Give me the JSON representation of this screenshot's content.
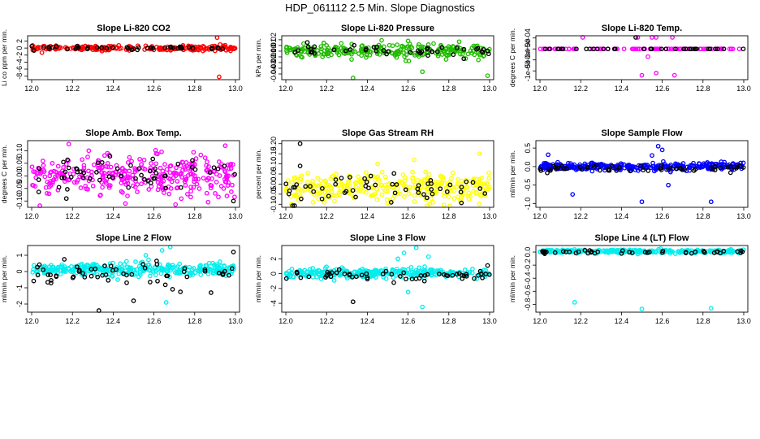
{
  "figure_title": "HDP_061112  2.5 Min. Slope Diagnostics",
  "colors": {
    "red": "#ff0000",
    "green": "#22bb00",
    "magenta": "#ff00ff",
    "blue": "#0000ff",
    "yellow": "#ffff00",
    "cyan": "#00eeee",
    "black": "#000000"
  },
  "chart_data": [
    {
      "type": "scatter",
      "title": "Slope Li-820 CO2",
      "ylabel": "Li co ppm per min.",
      "xlim": [
        11.98,
        13.02
      ],
      "ylim": [
        -9,
        3.5
      ],
      "xticks": [
        "12.0",
        "12.2",
        "12.4",
        "12.6",
        "12.8",
        "13.0"
      ],
      "yticks": [
        "-8",
        "-6",
        "-4",
        "-2",
        "0",
        "2"
      ],
      "ytick_values": [
        -8,
        -6,
        -4,
        -2,
        0,
        2
      ],
      "series": [
        {
          "name": "main",
          "color": "red",
          "center": 0,
          "spread": 0.35,
          "count": 220,
          "outliers": [
            [
              12.91,
              3
            ],
            [
              12.92,
              -8.2
            ],
            [
              12.95,
              0.8
            ],
            [
              12.05,
              -1.3
            ]
          ]
        },
        {
          "name": "black",
          "color": "black",
          "center": 0,
          "spread": 0.2,
          "count": 45,
          "outliers": []
        }
      ]
    },
    {
      "type": "scatter",
      "title": "Slope Li-820 Pressure",
      "ylabel": "kPa per min.",
      "xlim": [
        11.98,
        13.02
      ],
      "ylim": [
        -0.05,
        0.027
      ],
      "xticks": [
        "12.0",
        "12.2",
        "12.4",
        "12.6",
        "12.8",
        "13.0"
      ],
      "yticks": [
        "-0.04",
        "-0.03",
        "-0.02",
        "-0.01",
        "0.00",
        "0.01",
        "0.02"
      ],
      "ytick_values": [
        -0.04,
        -0.03,
        -0.02,
        -0.01,
        0,
        0.01,
        0.02
      ],
      "series": [
        {
          "name": "main",
          "color": "green",
          "center": 0,
          "spread": 0.006,
          "count": 260,
          "outliers": [
            [
              12.33,
              -0.047
            ],
            [
              12.99,
              -0.043
            ],
            [
              12.67,
              -0.036
            ],
            [
              12.47,
              0.019
            ],
            [
              12.6,
              0.018
            ],
            [
              12.2,
              0.01
            ]
          ]
        },
        {
          "name": "black",
          "color": "black",
          "center": 0,
          "spread": 0.005,
          "count": 45,
          "outliers": []
        }
      ]
    },
    {
      "type": "scatter",
      "title": "Slope Li-820 Temp.",
      "ylabel": "degrees C per min.",
      "xlim": [
        11.98,
        13.02
      ],
      "ylim": [
        -0.0014,
        0.0006
      ],
      "xticks": [
        "12.0",
        "12.2",
        "12.4",
        "12.6",
        "12.8",
        "13.0"
      ],
      "yticks": [
        "-1e-03",
        "-5e-04",
        "0e+00",
        "5e-04"
      ],
      "ytick_values": [
        -0.001,
        -0.0005,
        0,
        0.0005
      ],
      "series": [
        {
          "name": "main",
          "color": "magenta",
          "center": 0,
          "spread": 0,
          "count": 90,
          "outliers": [
            [
              12.21,
              0.00058
            ],
            [
              12.48,
              0.00058
            ],
            [
              12.55,
              0.00058
            ],
            [
              12.57,
              0.00058
            ],
            [
              12.65,
              0.00058
            ],
            [
              12.5,
              -0.0012
            ],
            [
              12.53,
              -0.00035
            ],
            [
              12.57,
              -0.0011
            ],
            [
              12.66,
              -0.0012
            ]
          ]
        },
        {
          "name": "black",
          "color": "black",
          "center": 0,
          "spread": 0,
          "count": 35,
          "outliers": [
            [
              12.47,
              0.00058
            ]
          ]
        }
      ]
    },
    {
      "type": "scatter",
      "title": "Slope Amb. Box Temp.",
      "ylabel": "degrees C per min.",
      "xlim": [
        11.98,
        13.02
      ],
      "ylim": [
        -0.125,
        0.14
      ],
      "xticks": [
        "12.0",
        "12.2",
        "12.4",
        "12.6",
        "12.8",
        "13.0"
      ],
      "yticks": [
        "-0.10",
        "-0.05",
        "0.00",
        "0.05",
        "0.10"
      ],
      "ytick_values": [
        -0.1,
        -0.05,
        0,
        0.05,
        0.1
      ],
      "series": [
        {
          "name": "main",
          "color": "magenta",
          "center": 0,
          "spread": 0.04,
          "count": 330,
          "outliers": [
            [
              12.95,
              0.12
            ],
            [
              12.28,
              0.1
            ],
            [
              12.04,
              -0.12
            ],
            [
              12.46,
              -0.11
            ]
          ]
        },
        {
          "name": "black",
          "color": "black",
          "center": 0,
          "spread": 0.035,
          "count": 55,
          "outliers": [
            [
              12.99,
              -0.1
            ],
            [
              12.17,
              -0.09
            ]
          ]
        }
      ]
    },
    {
      "type": "scatter",
      "title": "Slope Gas Stream RH",
      "ylabel": "percent per min.",
      "xlim": [
        11.98,
        13.02
      ],
      "ylim": [
        -0.115,
        0.215
      ],
      "xticks": [
        "12.0",
        "12.2",
        "12.4",
        "12.6",
        "12.8",
        "13.0"
      ],
      "yticks": [
        "-0.10",
        "-0.05",
        "0.00",
        "0.05",
        "0.10",
        "0.15",
        "0.20"
      ],
      "ytick_values": [
        -0.1,
        -0.05,
        0,
        0.05,
        0.1,
        0.15,
        0.2
      ],
      "series": [
        {
          "name": "main",
          "color": "yellow",
          "center": -0.02,
          "spread": 0.035,
          "count": 320,
          "outliers": [
            [
              12.95,
              0.15
            ],
            [
              12.63,
              0.12
            ],
            [
              12.45,
              0.1
            ],
            [
              12.03,
              -0.1
            ]
          ]
        },
        {
          "name": "black",
          "color": "black",
          "center": -0.02,
          "spread": 0.035,
          "count": 55,
          "outliers": [
            [
              12.07,
              0.2
            ],
            [
              12.07,
              0.09
            ]
          ]
        }
      ]
    },
    {
      "type": "scatter",
      "title": "Slope Sample Flow",
      "ylabel": "ml/min per min.",
      "xlim": [
        11.98,
        13.02
      ],
      "ylim": [
        -1.1,
        0.7
      ],
      "xticks": [
        "12.0",
        "12.2",
        "12.4",
        "12.6",
        "12.8",
        "13.0"
      ],
      "yticks": [
        "-1.0",
        "-0.5",
        "0.0",
        "0.5"
      ],
      "ytick_values": [
        -1,
        -0.5,
        0,
        0.5
      ],
      "series": [
        {
          "name": "main",
          "color": "blue",
          "center": 0,
          "spread": 0.05,
          "count": 320,
          "outliers": [
            [
              12.04,
              0.32
            ],
            [
              12.16,
              -0.75
            ],
            [
              12.5,
              -0.95
            ],
            [
              12.58,
              0.55
            ],
            [
              12.6,
              0.45
            ],
            [
              12.63,
              -0.5
            ],
            [
              12.84,
              -0.95
            ],
            [
              12.55,
              0.3
            ]
          ]
        },
        {
          "name": "black",
          "color": "black",
          "center": -0.05,
          "spread": 0.05,
          "count": 55,
          "outliers": []
        }
      ]
    },
    {
      "type": "scatter",
      "title": "Slope Line 2 Flow",
      "ylabel": "ml/min per min.",
      "xlim": [
        11.98,
        13.02
      ],
      "ylim": [
        -2.5,
        1.6
      ],
      "xticks": [
        "12.0",
        "12.2",
        "12.4",
        "12.6",
        "12.8",
        "13.0"
      ],
      "yticks": [
        "-2",
        "-1",
        "0",
        "1"
      ],
      "ytick_values": [
        -2,
        -1,
        0,
        1
      ],
      "series": [
        {
          "name": "main",
          "color": "cyan",
          "center": 0.1,
          "spread": 0.2,
          "count": 330,
          "outliers": [
            [
              12.68,
              1.5
            ],
            [
              12.64,
              1.3
            ],
            [
              12.66,
              -1.9
            ],
            [
              12.56,
              1.0
            ]
          ]
        },
        {
          "name": "black",
          "color": "black",
          "center": -0.1,
          "spread": 0.3,
          "count": 55,
          "outliers": [
            [
              12.33,
              -2.4
            ],
            [
              12.5,
              -1.8
            ],
            [
              12.16,
              0.75
            ],
            [
              12.99,
              1.2
            ],
            [
              12.88,
              -1.3
            ],
            [
              12.73,
              -1.25
            ]
          ]
        }
      ]
    },
    {
      "type": "scatter",
      "title": "Slope Line 3 Flow",
      "ylabel": "ml/min per min.",
      "xlim": [
        11.98,
        13.02
      ],
      "ylim": [
        -5.2,
        3.8
      ],
      "xticks": [
        "12.0",
        "12.2",
        "12.4",
        "12.6",
        "12.8",
        "13.0"
      ],
      "yticks": [
        "-4",
        "-2",
        "0",
        "2"
      ],
      "ytick_values": [
        -4,
        -2,
        0,
        2
      ],
      "series": [
        {
          "name": "main",
          "color": "cyan",
          "center": 0.1,
          "spread": 0.3,
          "count": 330,
          "outliers": [
            [
              12.64,
              3.5
            ],
            [
              12.58,
              2.8
            ],
            [
              12.67,
              -4.5
            ],
            [
              12.6,
              -2.5
            ],
            [
              12.55,
              2.0
            ],
            [
              12.7,
              2.3
            ]
          ]
        },
        {
          "name": "black",
          "color": "black",
          "center": -0.2,
          "spread": 0.35,
          "count": 55,
          "outliers": [
            [
              12.33,
              -3.8
            ],
            [
              12.53,
              -1.2
            ],
            [
              12.68,
              -1.0
            ],
            [
              12.99,
              1.1
            ]
          ]
        }
      ]
    },
    {
      "type": "scatter",
      "title": "Slope Line 4 (LT) Flow",
      "ylabel": "ml/min per min.",
      "xlim": [
        11.98,
        13.02
      ],
      "ylim": [
        -0.92,
        0.1
      ],
      "xticks": [
        "12.0",
        "12.2",
        "12.4",
        "12.6",
        "12.8",
        "13.0"
      ],
      "yticks": [
        "-0.8",
        "-0.6",
        "-0.4",
        "-0.2",
        "0.0"
      ],
      "ytick_values": [
        -0.8,
        -0.6,
        -0.4,
        -0.2,
        0
      ],
      "series": [
        {
          "name": "main",
          "color": "cyan",
          "center": 0.01,
          "spread": 0.012,
          "count": 300,
          "outliers": [
            [
              12.17,
              -0.77
            ],
            [
              12.5,
              -0.87
            ],
            [
              12.84,
              -0.86
            ],
            [
              12.48,
              -0.03
            ]
          ]
        },
        {
          "name": "black",
          "color": "black",
          "center": 0,
          "spread": 0.012,
          "count": 45,
          "outliers": []
        }
      ]
    }
  ]
}
